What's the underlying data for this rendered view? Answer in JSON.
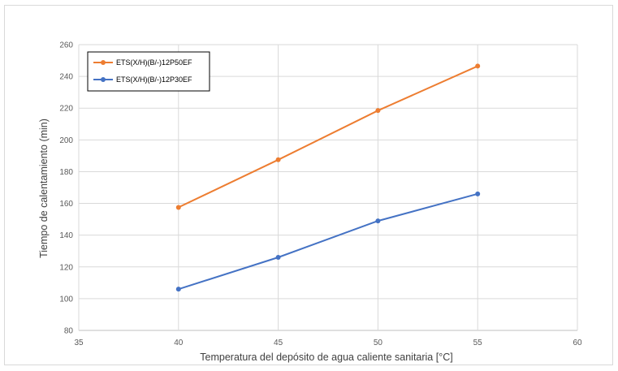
{
  "chart_data": {
    "type": "line",
    "title": "",
    "xlabel": "Temperatura del depósito de agua caliente sanitaria [°C]",
    "ylabel": "Tiempo de calentamiento (min)",
    "xlim": [
      35,
      60
    ],
    "ylim": [
      80,
      260
    ],
    "x_ticks": [
      "35",
      "40",
      "45",
      "50",
      "55",
      "60"
    ],
    "y_ticks": [
      "80",
      "100",
      "120",
      "140",
      "160",
      "180",
      "200",
      "220",
      "240",
      "260"
    ],
    "grid": true,
    "legend_position": "top-left",
    "series": [
      {
        "name": "ETS(X/H)(B/-)12P50EF",
        "color": "#ED7D31",
        "x": [
          40,
          45,
          50,
          55
        ],
        "y": [
          157.5,
          187.5,
          218.5,
          246.5
        ]
      },
      {
        "name": "ETS(X/H)(B/-)12P30EF",
        "color": "#4472C4",
        "x": [
          40,
          45,
          50,
          55
        ],
        "y": [
          106,
          126,
          149,
          166
        ]
      }
    ]
  }
}
